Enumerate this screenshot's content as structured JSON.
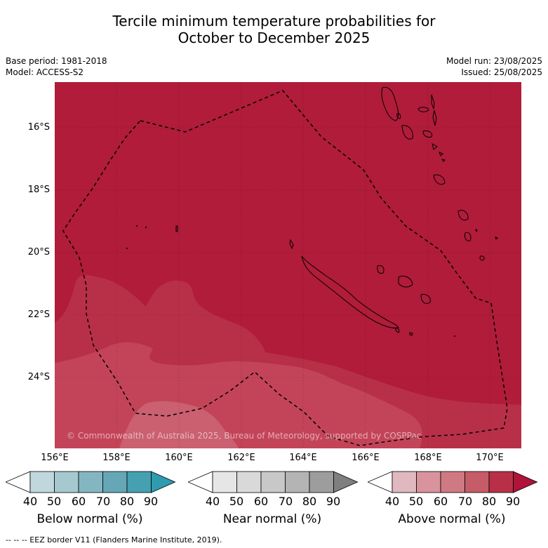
{
  "title_line1": "Tercile minimum temperature probabilities for",
  "title_line2": "October to December 2025",
  "base_period": "Base period: 1981-2018",
  "model": "Model: ACCESS-S2",
  "model_run": "Model run: 23/08/2025",
  "issued": "Issued: 25/08/2025",
  "lat_labels": [
    "16°S",
    "18°S",
    "20°S",
    "22°S",
    "24°S"
  ],
  "lon_labels": [
    "156°E",
    "158°E",
    "160°E",
    "162°E",
    "164°E",
    "166°E",
    "168°E",
    "170°E"
  ],
  "copyright": "© Commonwealth of Australia 2025, Bureau of Meteorology, supported by COSPPac",
  "colorbars": [
    {
      "label": "Below normal (%)",
      "ticks": [
        "40",
        "50",
        "60",
        "70",
        "80",
        "90"
      ],
      "colors": [
        "#ffffff",
        "#c0d7dd",
        "#a5c9cf",
        "#84b6c2",
        "#65a7b6",
        "#45a0b2",
        "#2e9bb0"
      ]
    },
    {
      "label": "Near normal (%)",
      "ticks": [
        "40",
        "50",
        "60",
        "70",
        "80",
        "90"
      ],
      "colors": [
        "#ffffff",
        "#e6e6e6",
        "#d9d9d9",
        "#c8c8c8",
        "#b4b4b4",
        "#9d9d9d",
        "#7f7f7f"
      ]
    },
    {
      "label": "Above normal (%)",
      "ticks": [
        "40",
        "50",
        "60",
        "70",
        "80",
        "90"
      ],
      "colors": [
        "#ffffff",
        "#e0b8c0",
        "#d8939c",
        "#cf7a82",
        "#c55c68",
        "#b83048",
        "#b0143a"
      ]
    }
  ],
  "footnote": "--  --  -- EEZ border V11 (Flanders Marine Institute, 2019).",
  "map_colors": {
    "p90": "#b01c3a",
    "p80": "#b83048",
    "p70": "#c34458",
    "p60": "#ca6070"
  }
}
